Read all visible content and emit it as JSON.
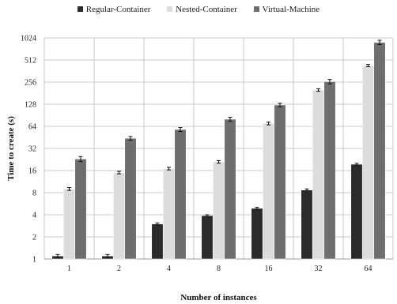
{
  "chart_data": {
    "type": "bar",
    "title": "",
    "xlabel": "Number of instances",
    "ylabel": "Time to create (s)",
    "yscale": "log2",
    "ylim": [
      1,
      1024
    ],
    "yticks": [
      "1",
      "2",
      "4",
      "8",
      "16",
      "32",
      "64",
      "128",
      "256",
      "512",
      "1024"
    ],
    "categories": [
      "1",
      "2",
      "4",
      "8",
      "16",
      "32",
      "64"
    ],
    "grid": true,
    "legend_position": "top-center",
    "series": [
      {
        "name": "Regular-Container",
        "color": "#2b2b2b",
        "values": [
          1.1,
          1.1,
          3.0,
          3.9,
          4.9,
          8.7,
          19.5
        ],
        "errors": [
          0.05,
          0.05,
          0.1,
          0.1,
          0.15,
          0.3,
          0.6
        ]
      },
      {
        "name": "Nested-Container",
        "color": "#dcdcdc",
        "values": [
          9.0,
          15.0,
          17.0,
          21.0,
          70.0,
          200.0,
          430.0
        ],
        "errors": [
          0.4,
          0.6,
          0.7,
          0.8,
          3.0,
          8.0,
          15.0
        ]
      },
      {
        "name": "Virtual-Machine",
        "color": "#6e6e6e",
        "values": [
          23.0,
          44.0,
          58.0,
          80.0,
          125.0,
          260.0,
          890.0
        ],
        "errors": [
          1.8,
          2.5,
          3.5,
          5.0,
          7.0,
          18.0,
          60.0
        ]
      }
    ]
  }
}
